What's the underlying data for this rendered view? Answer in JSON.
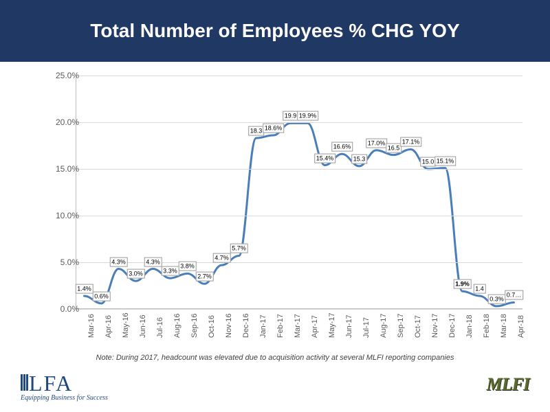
{
  "title": "Total Number of Employees % CHG YOY",
  "header_bg": "#1f3864",
  "note": "Note: During 2017, headcount was elevated due to acquisition activity at several MLFI reporting companies",
  "chart": {
    "type": "line",
    "ylim": [
      0,
      25
    ],
    "ytick_step": 5,
    "ytick_format": ".0%",
    "y_ticks": [
      "0.0%",
      "5.0%",
      "10.0%",
      "15.0%",
      "20.0%",
      "25.0%"
    ],
    "line_color": "#4a7ebb",
    "line_width": 3,
    "grid_color": "#d9d9d9",
    "background": "#ffffff",
    "axis_font_size": 12,
    "label_font_size": 9,
    "categories": [
      "Mar-16",
      "Apr-16",
      "May-16",
      "Jun-16",
      "Jul-16",
      "Aug-16",
      "Sep-16",
      "Oct-16",
      "Nov-16",
      "Dec-16",
      "Jan-17",
      "Feb-17",
      "Mar-17",
      "Apr-17",
      "May-17",
      "Jun-17",
      "Jul-17",
      "Aug-17",
      "Sep-17",
      "Oct-17",
      "Nov-17",
      "Dec-17",
      "Jan-18",
      "Feb-18",
      "Mar-18",
      "Apr-18"
    ],
    "values": [
      1.4,
      0.6,
      4.3,
      3.0,
      4.3,
      3.3,
      3.8,
      2.7,
      4.7,
      5.7,
      18.3,
      18.6,
      19.9,
      19.9,
      15.4,
      16.6,
      15.3,
      17.0,
      16.5,
      17.1,
      15.0,
      15.1,
      1.9,
      1.4,
      0.3,
      0.7
    ],
    "display_labels": [
      "1.4%",
      "0.6%",
      "4.3%",
      "3.0%",
      "4.3%",
      "3.3%",
      "3.8%",
      "2.7%",
      "4.7%",
      "5.7%",
      "18.3",
      "18.6%",
      "19.9",
      "19.9%",
      "15.4%",
      "16.6%",
      "15.3",
      "17.0%",
      "16.5",
      "17.1%",
      "15.0",
      "15.1%",
      "1.9%",
      "1.4",
      "0.3%",
      "0.7…"
    ],
    "bold_indices": [
      22
    ]
  },
  "elfa": {
    "main": "ELFA",
    "sub": "Equipping Business for Success"
  },
  "mlfi": "MLFI"
}
